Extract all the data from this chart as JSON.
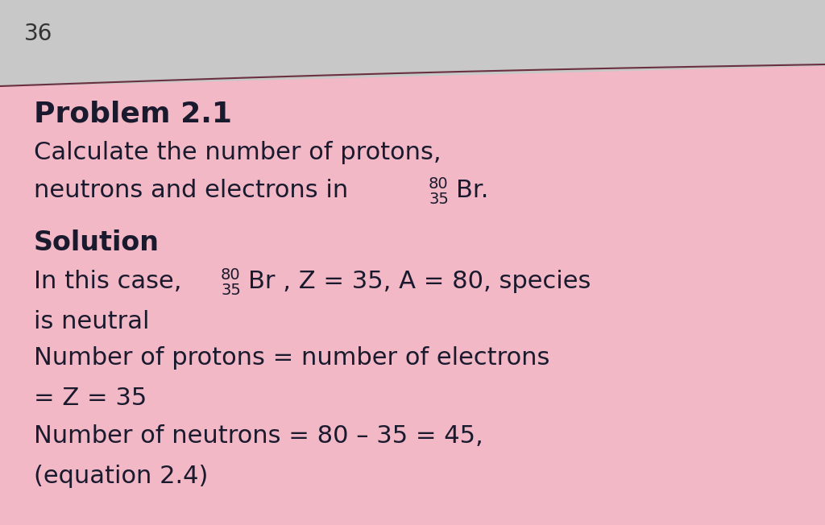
{
  "page_number": "36",
  "page_bg": "#c8c8c8",
  "pink_bg": "#f2b8c6",
  "line_color": "#6b3040",
  "title": "Problem 2.1",
  "line1": "Calculate the number of protons,",
  "line2_pre": "neutrons and electrons in ",
  "line2_sup": "80",
  "line2_sub": "35",
  "line2_post": "Br.",
  "solution_label": "Solution",
  "sol1_pre": "In this case, ",
  "sol1_sup": "80",
  "sol1_sub": "35",
  "sol1_post": "Br , Z = 35, A = 80, species",
  "sol2": "is neutral",
  "sol3": "Number of protons = number of electrons",
  "sol4": "= Z = 35",
  "sol5": "Number of neutrons = 80 – 35 = 45,",
  "sol6": "(equation 2.4)",
  "text_color": "#1a1a2e",
  "title_color": "#1a1a2e"
}
